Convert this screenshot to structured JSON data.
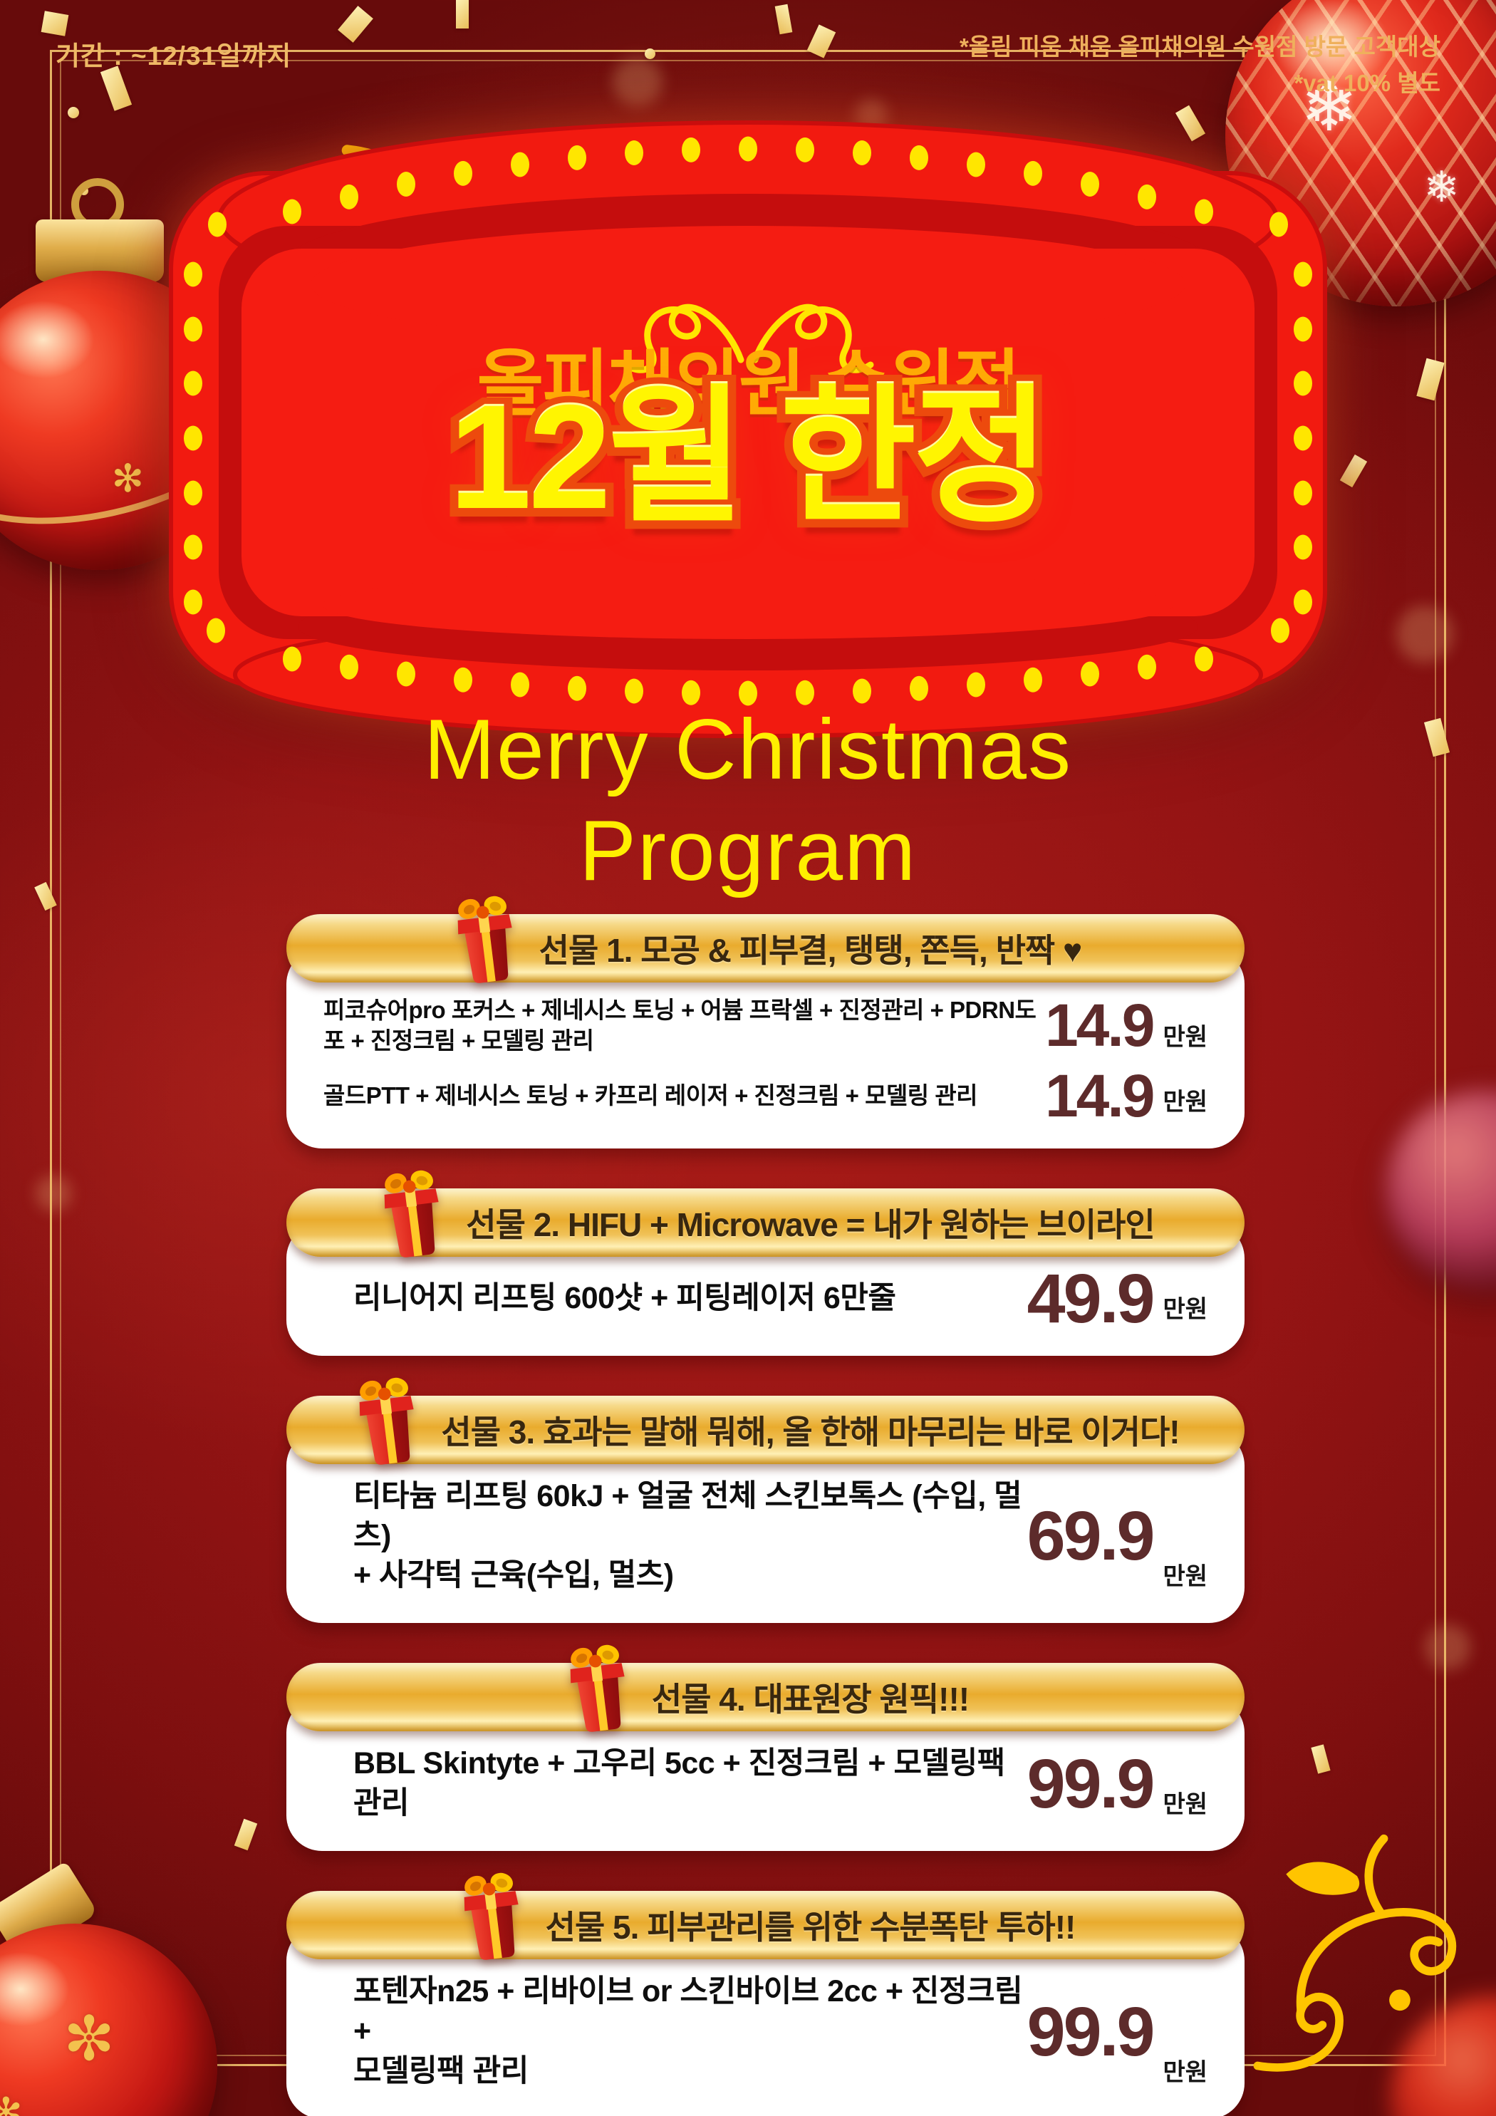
{
  "meta": {
    "period": "기간 : ~12/31일까지",
    "notice_line1": "*올림 피움 채움 올피채의원 수원점 방문 고객대상",
    "notice_line2": "*vat 10% 별도"
  },
  "marquee": {
    "title_top": "올피채의원 수원점",
    "title_main": "12월 한정"
  },
  "program_title": {
    "line1": "Merry Christmas",
    "line2": "Program"
  },
  "gifts": [
    {
      "header": "선물 1. 모공 & 피부결, 탱탱, 쫀득, 반짝 ♥",
      "items": [
        {
          "desc": "피코슈어pro 포커스 + 제네시스 토닝 + 어븀 프락셀 + 진정관리 + PDRN도포 + 진정크림 + 모델링 관리",
          "price": "14.9",
          "unit": "만원"
        },
        {
          "desc": "골드PTT + 제네시스 토닝 + 카프리 레이저 + 진정크림 + 모델링 관리",
          "price": "14.9",
          "unit": "만원"
        }
      ]
    },
    {
      "header": "선물 2. HIFU + Microwave = 내가 원하는 브이라인",
      "items": [
        {
          "desc": "리니어지 리프팅 600샷 + 피팅레이저 6만줄",
          "price": "49.9",
          "unit": "만원"
        }
      ]
    },
    {
      "header": "선물 3. 효과는 말해 뭐해, 올 한해 마무리는 바로 이거다!",
      "items": [
        {
          "desc": "티타늄 리프팅 60kJ + 얼굴 전체 스킨보톡스 (수입, 멀츠)\n+ 사각턱 근육(수입, 멀츠)",
          "price": "69.9",
          "unit": "만원"
        }
      ]
    },
    {
      "header": "선물 4. 대표원장 원픽!!!",
      "items": [
        {
          "desc": "BBL Skintyte + 고우리 5cc + 진정크림 + 모델링팩 관리",
          "price": "99.9",
          "unit": "만원"
        }
      ]
    },
    {
      "header": "선물 5. 피부관리를 위한 수분폭탄 투하!!",
      "items": [
        {
          "desc": "포텐자n25 + 리바이브 or 스킨바이브 2cc + 진정크림 +\n모델링팩 관리",
          "price": "99.9",
          "unit": "만원"
        }
      ]
    }
  ],
  "colors": {
    "background_red": "#8e1212",
    "marquee_red": "#f21a10",
    "marquee_band_red": "#c50d0d",
    "bulb_yellow": "#ffe600",
    "banner_gold": "#eab33b",
    "price_maroon": "#5d2b2b",
    "title_yellow": "#fff501",
    "title_gold": "#ffae06",
    "meta_gold": "#efb05c"
  }
}
